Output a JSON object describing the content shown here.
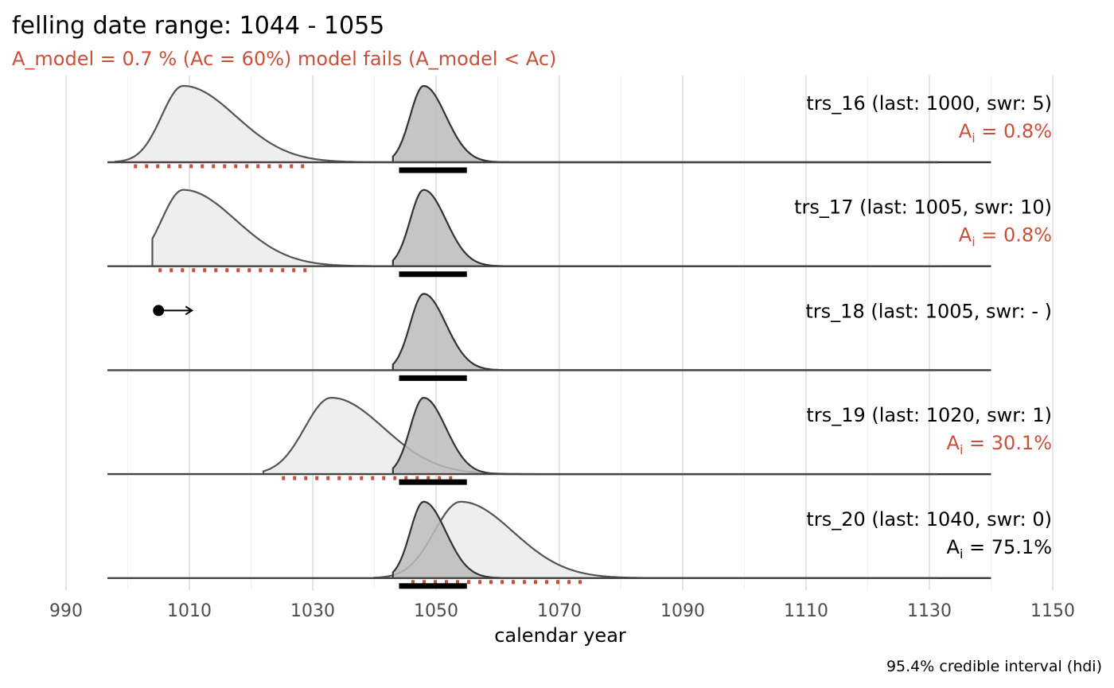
{
  "title": "felling date range: 1044 - 1055",
  "subtitle": "A_model =  0.7 % (Ac = 60%) model fails (A_model < Ac)",
  "caption": "95.4% credible interval (hdi)",
  "colors": {
    "accent": "#c9503a",
    "pass": "#000000",
    "curve_line": "#555555",
    "sample_fill": "#eeeeee",
    "model_fill": "#bbbbbb",
    "grid_major": "#e5e5e5",
    "grid_minor": "#f2f2f2"
  },
  "chart_data": {
    "type": "area",
    "xlabel": "calendar year",
    "xlim": [
      985,
      1155
    ],
    "x_ticks": [
      990,
      1010,
      1030,
      1050,
      1070,
      1090,
      1110,
      1130,
      1150
    ],
    "felling_range": [
      1044,
      1055
    ],
    "panels": [
      {
        "label": "trs_16 (last: 1000, swr: 5)",
        "agreement_prefix": "A",
        "agreement_sub": "i",
        "agreement_value": " = 0.8%",
        "agreement_fail": true,
        "sample_curve": {
          "start": 998,
          "mode": 1009,
          "sd_left": 3.5,
          "sd_right": 8.5
        },
        "sample_hdi": [
          1001,
          1029
        ],
        "model_curve": {
          "start": 1043,
          "mode": 1048,
          "sd_left": 2.2,
          "sd_right": 3.6
        },
        "model_hdi": [
          1044,
          1055
        ]
      },
      {
        "label": "trs_17 (last: 1005, swr: 10)",
        "agreement_prefix": "A",
        "agreement_sub": "i",
        "agreement_value": " = 0.8%",
        "agreement_fail": true,
        "sample_curve": {
          "start": 1004,
          "mode": 1009,
          "sd_left": 3.5,
          "sd_right": 8.5
        },
        "sample_hdi": [
          1005,
          1029
        ],
        "model_curve": {
          "start": 1043,
          "mode": 1048,
          "sd_left": 2.2,
          "sd_right": 3.6
        },
        "model_hdi": [
          1044,
          1055
        ]
      },
      {
        "label": "trs_18 (last: 1005, swr: - )",
        "agreement_prefix": "",
        "agreement_sub": "",
        "agreement_value": "",
        "agreement_fail": false,
        "sample_curve": null,
        "sample_hdi": null,
        "terminus_post_quem": 1005,
        "model_curve": {
          "start": 1043,
          "mode": 1048,
          "sd_left": 2.2,
          "sd_right": 3.6
        },
        "model_hdi": [
          1044,
          1055
        ]
      },
      {
        "label": "trs_19 (last: 1020, swr: 1)",
        "agreement_prefix": "A",
        "agreement_sub": "i",
        "agreement_value": " = 30.1%",
        "agreement_fail": true,
        "sample_curve": {
          "start": 1022,
          "mode": 1033,
          "sd_left": 4.3,
          "sd_right": 8.5
        },
        "sample_hdi": [
          1025,
          1053
        ],
        "model_curve": {
          "start": 1043,
          "mode": 1048,
          "sd_left": 2.2,
          "sd_right": 3.6
        },
        "model_hdi": [
          1044,
          1055
        ]
      },
      {
        "label": "trs_20 (last: 1040, swr: 0)",
        "agreement_prefix": "A",
        "agreement_sub": "i",
        "agreement_value": " = 75.1%",
        "agreement_fail": false,
        "sample_curve": {
          "start": 1040,
          "mode": 1054,
          "sd_left": 4.3,
          "sd_right": 8.5
        },
        "sample_hdi": [
          1046,
          1074
        ],
        "model_curve": {
          "start": 1043,
          "mode": 1048,
          "sd_left": 2.2,
          "sd_right": 3.6
        },
        "model_hdi": [
          1044,
          1055
        ]
      }
    ]
  }
}
